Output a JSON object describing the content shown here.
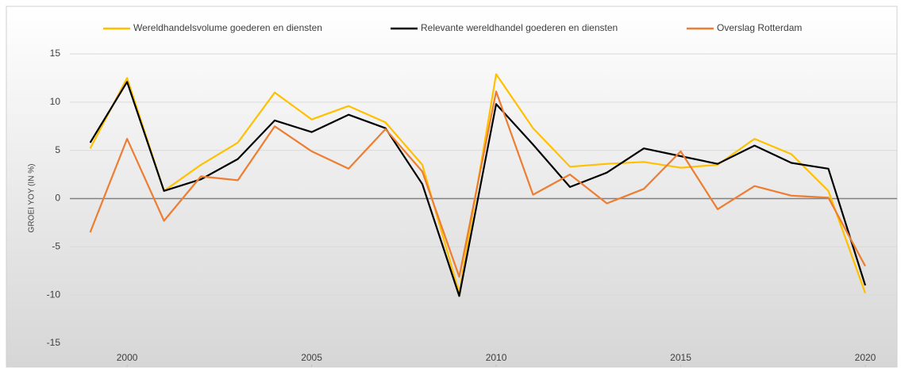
{
  "chart_data": {
    "type": "line",
    "y_label": "GROEI YOY (IN %)",
    "x": [
      1999,
      2000,
      2001,
      2002,
      2003,
      2004,
      2005,
      2006,
      2007,
      2008,
      2009,
      2010,
      2011,
      2012,
      2013,
      2014,
      2015,
      2016,
      2017,
      2018,
      2019,
      2020
    ],
    "series": [
      {
        "name": "Wereldhandelsvolume goederen en diensten",
        "color": "#ffc000",
        "values": [
          5.2,
          12.5,
          0.8,
          3.5,
          5.8,
          11.0,
          8.2,
          9.6,
          7.9,
          3.5,
          -9.8,
          12.9,
          7.3,
          3.3,
          3.6,
          3.8,
          3.2,
          3.5,
          6.2,
          4.6,
          0.8,
          -9.8
        ]
      },
      {
        "name": "Relevante wereldhandel goederen en diensten",
        "color": "#000000",
        "values": [
          5.8,
          12.1,
          0.8,
          2.0,
          4.1,
          8.1,
          6.9,
          8.7,
          7.3,
          1.5,
          -10.1,
          9.8,
          5.6,
          1.2,
          2.7,
          5.2,
          4.4,
          3.6,
          5.5,
          3.7,
          3.1,
          -9.0
        ]
      },
      {
        "name": "Overslag Rotterdam",
        "color": "#ed7d31",
        "values": [
          -3.5,
          6.2,
          -2.3,
          2.3,
          1.9,
          7.5,
          4.9,
          3.1,
          7.2,
          2.8,
          -8.1,
          11.1,
          0.4,
          2.5,
          -0.5,
          1.0,
          4.9,
          -1.1,
          1.3,
          0.3,
          0.1,
          -7.0
        ]
      }
    ],
    "xlim": [
      1998.45,
      2020.86
    ],
    "xticks": [
      2000,
      2005,
      2010,
      2015,
      2020
    ],
    "ylim": [
      -15,
      15
    ],
    "yticks": [
      -15,
      -10,
      -5,
      0,
      5,
      10,
      15
    ],
    "grid": true
  }
}
